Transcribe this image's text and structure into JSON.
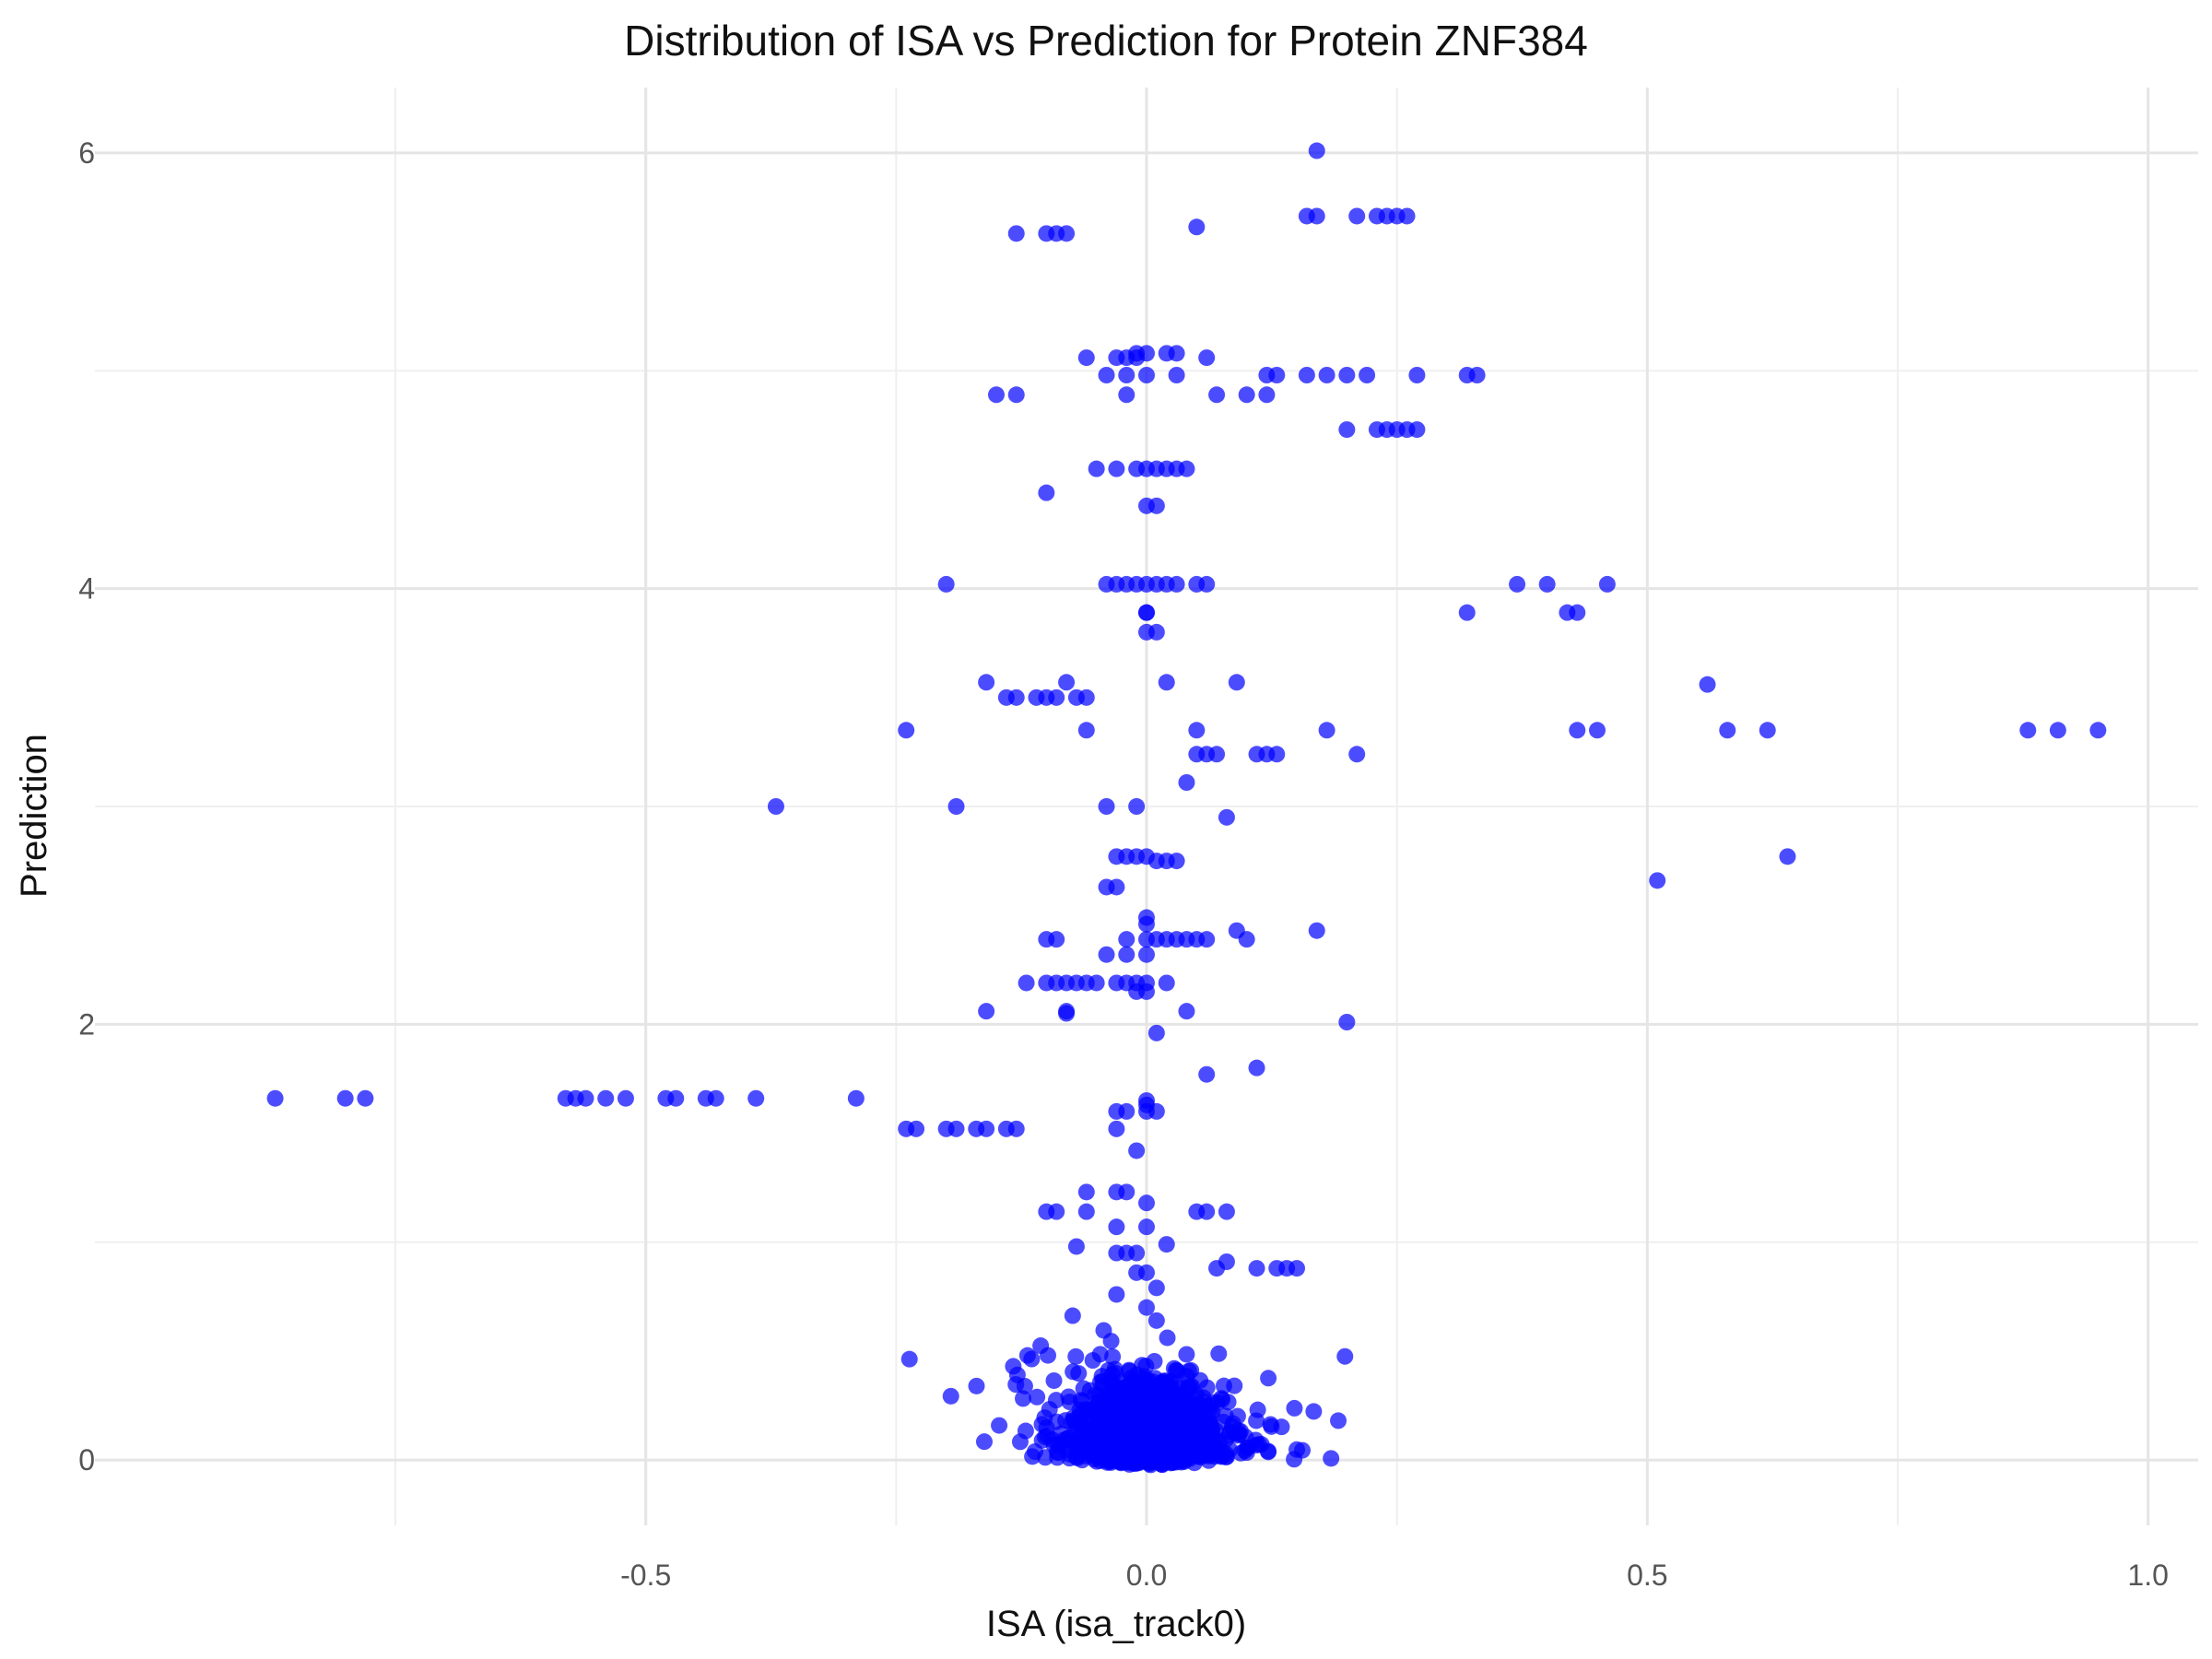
{
  "chart_data": {
    "type": "scatter",
    "title": "Distribution of ISA vs Prediction for Protein ZNF384",
    "xlabel": "ISA (isa_track0)",
    "ylabel": "Prediction",
    "xlim": [
      -1.05,
      1.05
    ],
    "ylim": [
      -0.3,
      6.3
    ],
    "x_ticks": [
      -0.5,
      0.0,
      0.5,
      1.0
    ],
    "x_tick_labels": [
      "-0.5",
      "0.0",
      "0.5",
      "1.0"
    ],
    "x_minor_ticks": [
      -0.75,
      -0.25,
      0.25,
      0.75
    ],
    "y_ticks": [
      0,
      2,
      4,
      6
    ],
    "y_tick_labels": [
      "0",
      "2",
      "4",
      "6"
    ],
    "y_minor_ticks": [
      1,
      3,
      5
    ],
    "grid": true,
    "legend": "none",
    "point_color": "#0000ff",
    "point_opacity": 0.7,
    "series": [
      {
        "points": [
          [
            0.17,
            6.01
          ],
          [
            -0.13,
            5.63
          ],
          [
            -0.1,
            5.63
          ],
          [
            -0.09,
            5.63
          ],
          [
            -0.08,
            5.63
          ],
          [
            0.05,
            5.66
          ],
          [
            0.16,
            5.71
          ],
          [
            0.17,
            5.71
          ],
          [
            0.21,
            5.71
          ],
          [
            0.23,
            5.71
          ],
          [
            0.24,
            5.71
          ],
          [
            0.25,
            5.71
          ],
          [
            0.26,
            5.71
          ],
          [
            -0.06,
            5.06
          ],
          [
            -0.03,
            5.06
          ],
          [
            -0.02,
            5.06
          ],
          [
            -0.01,
            5.08
          ],
          [
            0.0,
            5.08
          ],
          [
            0.02,
            5.08
          ],
          [
            0.03,
            5.08
          ],
          [
            0.06,
            5.06
          ],
          [
            -0.01,
            5.06
          ],
          [
            -0.04,
            4.98
          ],
          [
            -0.02,
            4.98
          ],
          [
            0.0,
            4.98
          ],
          [
            0.03,
            4.98
          ],
          [
            0.12,
            4.98
          ],
          [
            0.13,
            4.98
          ],
          [
            0.16,
            4.98
          ],
          [
            0.18,
            4.98
          ],
          [
            0.2,
            4.98
          ],
          [
            0.22,
            4.98
          ],
          [
            0.27,
            4.98
          ],
          [
            0.32,
            4.98
          ],
          [
            0.33,
            4.98
          ],
          [
            -0.15,
            4.89
          ],
          [
            -0.13,
            4.89
          ],
          [
            -0.02,
            4.89
          ],
          [
            0.07,
            4.89
          ],
          [
            0.1,
            4.89
          ],
          [
            0.12,
            4.89
          ],
          [
            0.2,
            4.73
          ],
          [
            0.23,
            4.73
          ],
          [
            0.24,
            4.73
          ],
          [
            0.25,
            4.73
          ],
          [
            0.26,
            4.73
          ],
          [
            0.27,
            4.73
          ],
          [
            -0.05,
            4.55
          ],
          [
            -0.03,
            4.55
          ],
          [
            -0.01,
            4.55
          ],
          [
            0.0,
            4.55
          ],
          [
            0.01,
            4.55
          ],
          [
            0.02,
            4.55
          ],
          [
            0.03,
            4.55
          ],
          [
            0.04,
            4.55
          ],
          [
            -0.1,
            4.44
          ],
          [
            0.0,
            4.38
          ],
          [
            0.01,
            4.38
          ],
          [
            -0.2,
            4.02
          ],
          [
            -0.04,
            4.02
          ],
          [
            -0.03,
            4.02
          ],
          [
            -0.02,
            4.02
          ],
          [
            -0.01,
            4.02
          ],
          [
            0.0,
            4.02
          ],
          [
            0.01,
            4.02
          ],
          [
            0.02,
            4.02
          ],
          [
            0.03,
            4.02
          ],
          [
            0.05,
            4.02
          ],
          [
            0.06,
            4.02
          ],
          [
            0.37,
            4.02
          ],
          [
            0.4,
            4.02
          ],
          [
            0.46,
            4.02
          ],
          [
            0.0,
            3.89
          ],
          [
            0.0,
            3.89
          ],
          [
            0.32,
            3.89
          ],
          [
            0.42,
            3.89
          ],
          [
            0.43,
            3.89
          ],
          [
            0.0,
            3.8
          ],
          [
            0.01,
            3.8
          ],
          [
            -0.16,
            3.57
          ],
          [
            -0.08,
            3.57
          ],
          [
            0.02,
            3.57
          ],
          [
            0.09,
            3.57
          ],
          [
            0.56,
            3.56
          ],
          [
            -0.14,
            3.5
          ],
          [
            -0.13,
            3.5
          ],
          [
            -0.11,
            3.5
          ],
          [
            -0.1,
            3.5
          ],
          [
            -0.09,
            3.5
          ],
          [
            -0.07,
            3.5
          ],
          [
            -0.06,
            3.5
          ],
          [
            -0.24,
            3.35
          ],
          [
            -0.06,
            3.35
          ],
          [
            0.05,
            3.35
          ],
          [
            0.18,
            3.35
          ],
          [
            0.43,
            3.35
          ],
          [
            0.45,
            3.35
          ],
          [
            0.58,
            3.35
          ],
          [
            0.62,
            3.35
          ],
          [
            0.88,
            3.35
          ],
          [
            0.91,
            3.35
          ],
          [
            0.95,
            3.35
          ],
          [
            0.05,
            3.24
          ],
          [
            0.06,
            3.24
          ],
          [
            0.07,
            3.24
          ],
          [
            0.11,
            3.24
          ],
          [
            0.12,
            3.24
          ],
          [
            0.13,
            3.24
          ],
          [
            0.21,
            3.24
          ],
          [
            0.04,
            3.11
          ],
          [
            -0.37,
            3.0
          ],
          [
            -0.19,
            3.0
          ],
          [
            -0.04,
            3.0
          ],
          [
            -0.01,
            3.0
          ],
          [
            0.08,
            2.95
          ],
          [
            -0.03,
            2.77
          ],
          [
            -0.02,
            2.77
          ],
          [
            -0.01,
            2.77
          ],
          [
            0.0,
            2.77
          ],
          [
            0.01,
            2.75
          ],
          [
            0.02,
            2.75
          ],
          [
            0.03,
            2.75
          ],
          [
            0.64,
            2.77
          ],
          [
            0.51,
            2.66
          ],
          [
            -0.04,
            2.63
          ],
          [
            -0.03,
            2.63
          ],
          [
            0.0,
            2.49
          ],
          [
            0.0,
            2.46
          ],
          [
            0.09,
            2.43
          ],
          [
            0.17,
            2.43
          ],
          [
            -0.09,
            2.39
          ],
          [
            -0.1,
            2.39
          ],
          [
            -0.02,
            2.39
          ],
          [
            0.0,
            2.39
          ],
          [
            0.01,
            2.39
          ],
          [
            0.02,
            2.39
          ],
          [
            0.03,
            2.39
          ],
          [
            0.04,
            2.39
          ],
          [
            0.05,
            2.39
          ],
          [
            0.06,
            2.39
          ],
          [
            0.1,
            2.39
          ],
          [
            -0.04,
            2.32
          ],
          [
            -0.02,
            2.32
          ],
          [
            0.0,
            2.32
          ],
          [
            -0.12,
            2.19
          ],
          [
            -0.1,
            2.19
          ],
          [
            -0.09,
            2.19
          ],
          [
            -0.08,
            2.19
          ],
          [
            -0.07,
            2.19
          ],
          [
            -0.06,
            2.19
          ],
          [
            -0.05,
            2.19
          ],
          [
            -0.03,
            2.19
          ],
          [
            -0.02,
            2.19
          ],
          [
            -0.01,
            2.19
          ],
          [
            0.0,
            2.19
          ],
          [
            0.02,
            2.19
          ],
          [
            -0.01,
            2.15
          ],
          [
            0.0,
            2.15
          ],
          [
            -0.16,
            2.06
          ],
          [
            -0.08,
            2.06
          ],
          [
            -0.08,
            2.05
          ],
          [
            0.04,
            2.06
          ],
          [
            0.2,
            2.01
          ],
          [
            0.01,
            1.96
          ],
          [
            0.11,
            1.8
          ],
          [
            0.06,
            1.77
          ],
          [
            -0.87,
            1.66
          ],
          [
            -0.8,
            1.66
          ],
          [
            -0.78,
            1.66
          ],
          [
            -0.58,
            1.66
          ],
          [
            -0.57,
            1.66
          ],
          [
            -0.56,
            1.66
          ],
          [
            -0.54,
            1.66
          ],
          [
            -0.52,
            1.66
          ],
          [
            -0.48,
            1.66
          ],
          [
            -0.47,
            1.66
          ],
          [
            -0.44,
            1.66
          ],
          [
            -0.43,
            1.66
          ],
          [
            -0.39,
            1.66
          ],
          [
            -0.29,
            1.66
          ],
          [
            0.0,
            1.65
          ],
          [
            0.0,
            1.63
          ],
          [
            -0.03,
            1.6
          ],
          [
            -0.02,
            1.6
          ],
          [
            0.0,
            1.6
          ],
          [
            0.01,
            1.6
          ],
          [
            -0.24,
            1.52
          ],
          [
            -0.23,
            1.52
          ],
          [
            -0.2,
            1.52
          ],
          [
            -0.19,
            1.52
          ],
          [
            -0.17,
            1.52
          ],
          [
            -0.16,
            1.52
          ],
          [
            -0.14,
            1.52
          ],
          [
            -0.13,
            1.52
          ],
          [
            -0.03,
            1.52
          ],
          [
            -0.01,
            1.42
          ],
          [
            -0.06,
            1.23
          ],
          [
            -0.03,
            1.23
          ],
          [
            -0.02,
            1.23
          ],
          [
            0.0,
            1.18
          ],
          [
            -0.1,
            1.14
          ],
          [
            -0.09,
            1.14
          ],
          [
            -0.06,
            1.14
          ],
          [
            0.05,
            1.14
          ],
          [
            0.06,
            1.14
          ],
          [
            0.08,
            1.14
          ],
          [
            -0.03,
            1.07
          ],
          [
            0.0,
            1.07
          ],
          [
            0.02,
            0.99
          ],
          [
            -0.07,
            0.98
          ],
          [
            -0.03,
            0.95
          ],
          [
            -0.02,
            0.95
          ],
          [
            -0.01,
            0.95
          ],
          [
            0.07,
            0.88
          ],
          [
            0.08,
            0.91
          ],
          [
            0.11,
            0.88
          ],
          [
            0.13,
            0.88
          ],
          [
            0.14,
            0.88
          ],
          [
            0.15,
            0.88
          ],
          [
            -0.01,
            0.86
          ],
          [
            0.0,
            0.86
          ],
          [
            0.01,
            0.79
          ],
          [
            -0.03,
            0.76
          ],
          [
            0.0,
            0.7
          ],
          [
            0.01,
            0.64
          ]
        ]
      }
    ]
  }
}
